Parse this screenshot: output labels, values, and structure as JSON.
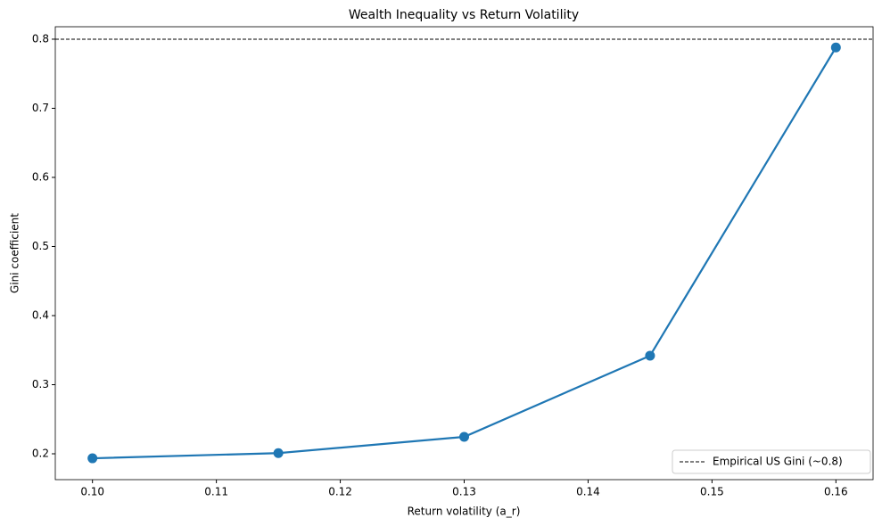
{
  "chart_data": {
    "type": "line",
    "title": "Wealth Inequality vs Return Volatility",
    "x_label": "Return volatility (a_r)",
    "y_label": "Gini coefficient",
    "x": [
      0.1,
      0.115,
      0.13,
      0.145,
      0.16
    ],
    "values": [
      0.1935,
      0.201,
      0.2245,
      0.342,
      0.788
    ],
    "color": "#1f77b4",
    "xlim": [
      0.097,
      0.163
    ],
    "ylim": [
      0.1626,
      0.818
    ],
    "xticks": [
      {
        "value": 0.1,
        "label": "0.10"
      },
      {
        "value": 0.11,
        "label": "0.11"
      },
      {
        "value": 0.12,
        "label": "0.12"
      },
      {
        "value": 0.13,
        "label": "0.13"
      },
      {
        "value": 0.14,
        "label": "0.14"
      },
      {
        "value": 0.15,
        "label": "0.15"
      },
      {
        "value": 0.16,
        "label": "0.16"
      }
    ],
    "yticks": [
      0.2,
      0.3,
      0.4,
      0.5,
      0.6,
      0.7,
      0.8
    ],
    "grid": false,
    "reference_line": {
      "value": 0.8,
      "label": "Empirical US Gini (~0.8)",
      "color": "#000000",
      "style": "dashed"
    },
    "legend_position": "lower right"
  }
}
